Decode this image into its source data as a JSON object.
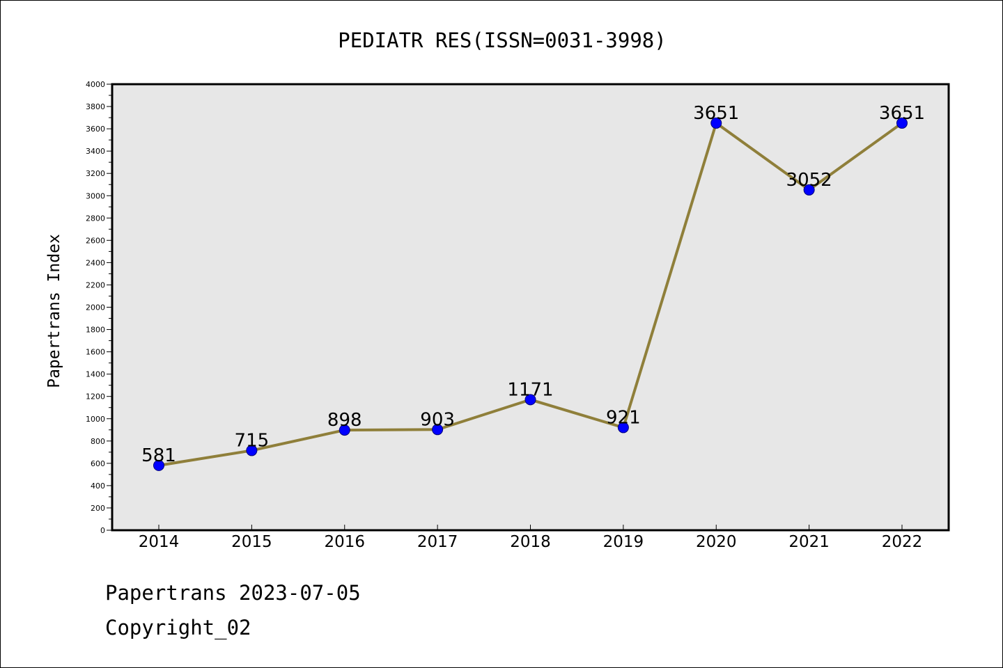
{
  "colors": {
    "plot_background": "#e7e7e7",
    "line": "#8f7f3a",
    "marker_fill": "#0000ff",
    "marker_stroke": "#00007a",
    "axis": "#000000"
  },
  "chart_data": {
    "type": "line",
    "title": "PEDIATR RES(ISSN=0031-3998)",
    "xlabel": "",
    "ylabel": "Papertrans Index",
    "categories": [
      "2014",
      "2015",
      "2016",
      "2017",
      "2018",
      "2019",
      "2020",
      "2021",
      "2022"
    ],
    "series": [
      {
        "values": [
          581,
          715,
          898,
          903,
          1171,
          921,
          3651,
          3052,
          3651
        ]
      }
    ],
    "data_labels": [
      "581",
      "715",
      "898",
      "903",
      "1171",
      "921",
      "3651",
      "3052",
      "3651"
    ],
    "ylim": [
      0,
      4000
    ],
    "y_ticks": [
      0,
      200,
      400,
      600,
      800,
      1000,
      1200,
      1400,
      1600,
      1800,
      2000,
      2200,
      2400,
      2600,
      2800,
      3000,
      3200,
      3400,
      3600,
      3800,
      4000
    ],
    "y_minor_step": 100,
    "grid": false,
    "legend": "none"
  },
  "footer": {
    "line1": "Papertrans 2023-07-05",
    "line2": "Copyright_02"
  }
}
